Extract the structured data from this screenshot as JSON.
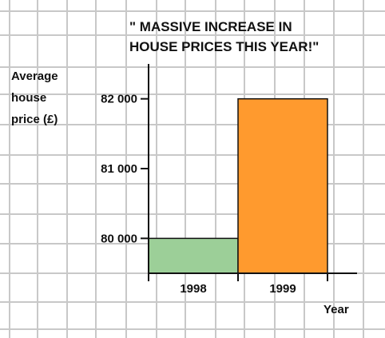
{
  "colors": {
    "background": "#ffffff",
    "grid": "#c8c8c8",
    "axis": "#111111",
    "bar_1998": "#9ccf98",
    "bar_1999": "#ff9a2e"
  },
  "chart_data": {
    "type": "bar",
    "title": "\" MASSIVE INCREASE  IN HOUSE PRICES THIS YEAR!\"",
    "title_lines": [
      "\" MASSIVE INCREASE  IN",
      "HOUSE PRICES THIS YEAR!\""
    ],
    "ylabel_lines": [
      "Average",
      "house",
      "price (£)"
    ],
    "xlabel": "Year",
    "categories": [
      "1998",
      "1999"
    ],
    "values": [
      80000,
      82000
    ],
    "ylim": [
      79500,
      82500
    ],
    "yticks": [
      80000,
      81000,
      82000
    ],
    "ytick_labels": [
      "80 000",
      "81 000",
      "82 000"
    ],
    "grid": true,
    "legend": "none"
  }
}
